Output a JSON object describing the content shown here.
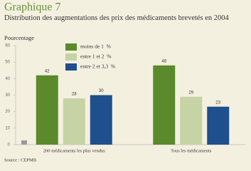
{
  "chart_data": {
    "type": "bar",
    "title": "Graphique 7",
    "subtitle": "Distribution des augmentations des prix des médicaments brevetés en 2004",
    "ylabel": "Pourcentage",
    "source": "Source : CEPMB",
    "categories": [
      "200 médicaments les plus vendus",
      "Tous les médicaments"
    ],
    "series": [
      {
        "name": "moins de 1  %",
        "color": "#5a8a2c",
        "values": [
          42,
          48
        ]
      },
      {
        "name": "entre 1 et 2  %",
        "color": "#c5d3a5",
        "values": [
          28,
          29
        ]
      },
      {
        "name": "entre 2 et 3,3  %",
        "color": "#1f4f8c",
        "values": [
          30,
          23
        ]
      }
    ],
    "ylim": [
      0,
      60
    ],
    "yticks": [
      0,
      10,
      20,
      30,
      40,
      50,
      60
    ]
  }
}
